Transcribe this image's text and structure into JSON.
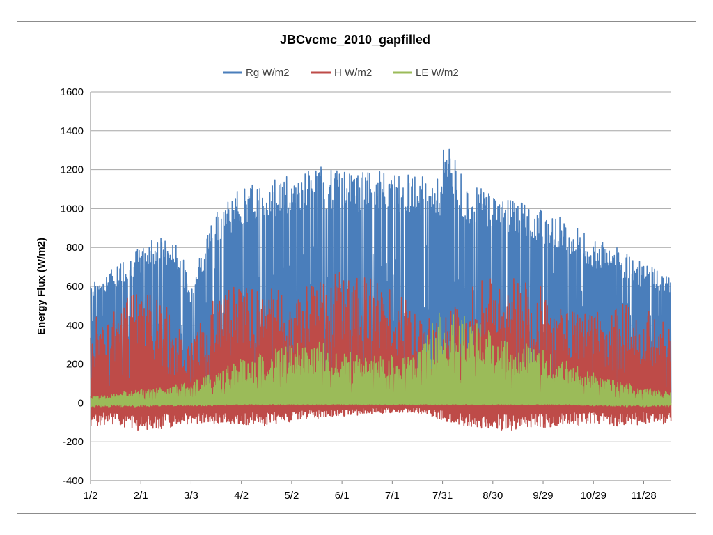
{
  "chart_data": {
    "type": "line",
    "title": "JBCvcmc_2010_gapfilled",
    "ylabel": "Energy Flux (W/m2)",
    "xlabel": "",
    "ylim": [
      -400,
      1600
    ],
    "yticks": [
      "-400",
      "-200",
      "0",
      "200",
      "400",
      "600",
      "800",
      "1000",
      "1200",
      "1400",
      "1600"
    ],
    "x_start": "1/2",
    "x_end": "12/13",
    "xticks": [
      "1/2",
      "2/1",
      "3/3",
      "4/2",
      "5/2",
      "6/1",
      "7/1",
      "7/31",
      "8/30",
      "9/29",
      "10/29",
      "11/28"
    ],
    "grid": true,
    "legend_position": "top",
    "x_unit": "day of year",
    "series": [
      {
        "name": "Rg W/m2",
        "color": "#4a7ebb",
        "kind": "daily-max-envelope",
        "x": [
          1,
          15,
          25,
          31,
          40,
          55,
          60,
          75,
          90,
          105,
          120,
          130,
          135,
          150,
          165,
          180,
          195,
          210,
          212,
          225,
          240,
          255,
          270,
          285,
          300,
          315,
          330,
          345
        ],
        "values": [
          650,
          700,
          780,
          800,
          870,
          800,
          600,
          1000,
          1100,
          1150,
          1180,
          1200,
          1220,
          1200,
          1190,
          1200,
          1180,
          1150,
          1380,
          1120,
          1100,
          1050,
          1000,
          950,
          850,
          800,
          720,
          660
        ],
        "min": [
          0,
          0,
          0,
          0,
          0,
          0,
          0,
          0,
          0,
          0,
          0,
          0,
          0,
          0,
          0,
          0,
          0,
          0,
          0,
          0,
          0,
          0,
          0,
          0,
          0,
          0,
          0,
          0
        ]
      },
      {
        "name": "H W/m2",
        "color": "#be4b48",
        "kind": "daily-range-band",
        "x": [
          1,
          15,
          30,
          45,
          60,
          75,
          90,
          105,
          120,
          135,
          150,
          165,
          180,
          195,
          210,
          225,
          240,
          255,
          270,
          285,
          300,
          315,
          330,
          345
        ],
        "values": [
          450,
          480,
          600,
          550,
          300,
          550,
          620,
          650,
          550,
          620,
          700,
          650,
          600,
          500,
          420,
          600,
          650,
          650,
          600,
          500,
          450,
          520,
          480,
          450
        ],
        "min": [
          -120,
          -110,
          -150,
          -130,
          -110,
          -120,
          -110,
          -120,
          -100,
          -80,
          -70,
          -60,
          -50,
          -50,
          -90,
          -120,
          -140,
          -140,
          -130,
          -120,
          -110,
          -120,
          -110,
          -110
        ]
      },
      {
        "name": "LE W/m2",
        "color": "#9bbb59",
        "kind": "daily-range-band",
        "x": [
          1,
          15,
          30,
          45,
          60,
          75,
          90,
          105,
          120,
          135,
          150,
          165,
          180,
          195,
          200,
          210,
          225,
          240,
          255,
          270,
          285,
          300,
          315,
          330,
          345
        ],
        "values": [
          40,
          50,
          70,
          80,
          110,
          160,
          220,
          260,
          300,
          320,
          280,
          260,
          250,
          230,
          340,
          480,
          450,
          380,
          320,
          280,
          220,
          160,
          120,
          80,
          60
        ],
        "min": [
          -20,
          -20,
          -20,
          -15,
          -15,
          -15,
          -10,
          -10,
          -10,
          -10,
          -10,
          -10,
          -10,
          -10,
          -10,
          -10,
          -10,
          -10,
          -10,
          -10,
          -10,
          -15,
          -20,
          -20,
          -20
        ]
      }
    ]
  }
}
